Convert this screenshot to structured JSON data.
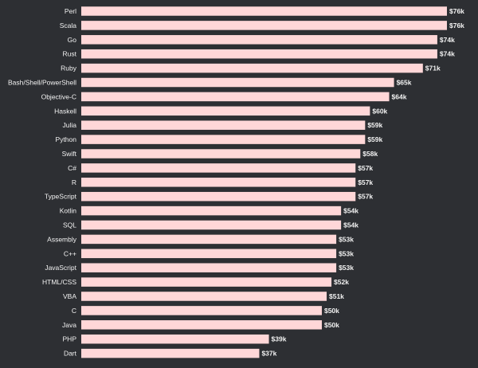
{
  "chart_data": {
    "type": "bar",
    "orientation": "horizontal",
    "categories": [
      "Perl",
      "Scala",
      "Go",
      "Rust",
      "Ruby",
      "Bash/Shell/PowerShell",
      "Objective-C",
      "Haskell",
      "Julia",
      "Python",
      "Swift",
      "C#",
      "R",
      "TypeScript",
      "Kotlin",
      "SQL",
      "Assembly",
      "C++",
      "JavaScript",
      "HTML/CSS",
      "VBA",
      "C",
      "Java",
      "PHP",
      "Dart"
    ],
    "values": [
      76,
      76,
      74,
      74,
      71,
      65,
      64,
      60,
      59,
      59,
      58,
      57,
      57,
      57,
      54,
      54,
      53,
      53,
      53,
      52,
      51,
      50,
      50,
      39,
      37
    ],
    "value_labels": [
      "$76k",
      "$76k",
      "$74k",
      "$74k",
      "$71k",
      "$65k",
      "$64k",
      "$60k",
      "$59k",
      "$59k",
      "$58k",
      "$57k",
      "$57k",
      "$57k",
      "$54k",
      "$54k",
      "$53k",
      "$53k",
      "$53k",
      "$52k",
      "$51k",
      "$50k",
      "$50k",
      "$39k",
      "$37k"
    ],
    "title": "",
    "xlabel": "",
    "ylabel": "",
    "xlim": [
      0,
      76
    ],
    "grid": false,
    "legend": "none",
    "colors": {
      "background": "#2d2f33",
      "bar": "#ffd7d8",
      "text": "#f2f2f2"
    }
  }
}
